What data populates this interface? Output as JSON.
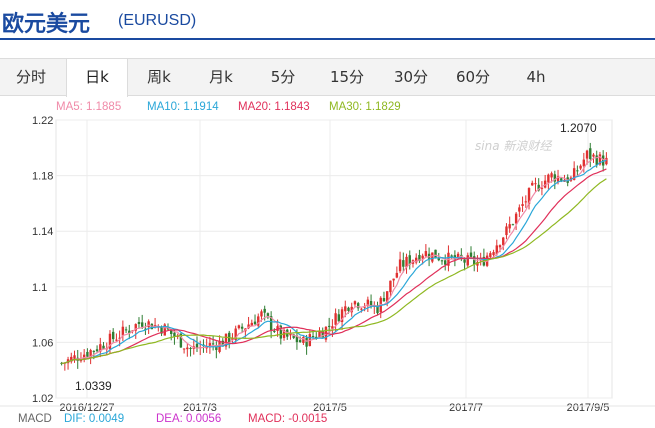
{
  "header": {
    "title": "欧元美元",
    "code": "(EURUSD)"
  },
  "tabs": [
    {
      "label": "分时",
      "active": false
    },
    {
      "label": "日k",
      "active": true
    },
    {
      "label": "周k",
      "active": false
    },
    {
      "label": "月k",
      "active": false
    },
    {
      "label": "5分",
      "active": false
    },
    {
      "label": "15分",
      "active": false
    },
    {
      "label": "30分",
      "active": false
    },
    {
      "label": "60分",
      "active": false
    },
    {
      "label": "4h",
      "active": false
    }
  ],
  "ma": {
    "ma5": "MA5: 1.1885",
    "ma10": "MA10: 1.1914",
    "ma20": "MA20: 1.1843",
    "ma30": "MA30: 1.1829",
    "colors": {
      "ma5": "#f08aa8",
      "ma10": "#2aa7d8",
      "ma20": "#e0305a",
      "ma30": "#8fb821"
    }
  },
  "macd": {
    "label": "MACD",
    "dif": "DIF: 0.0049",
    "dea": "DEA: 0.0056",
    "macd": "MACD: -0.0015",
    "colors": {
      "dif": "#2aa7d8",
      "dea": "#cc33cc",
      "macd": "#e0305a"
    }
  },
  "watermark": "新浪财经",
  "chart_data": {
    "type": "candlestick",
    "yticks": [
      "1.22",
      "1.18",
      "1.14",
      "1.1",
      "1.06",
      "1.02"
    ],
    "ylim": [
      1.02,
      1.22
    ],
    "xticks": [
      "2016/12/27",
      "2017/3",
      "2017/5",
      "2017/7",
      "2017/9/5"
    ],
    "annotations": {
      "high": "1.2070",
      "low": "1.0339"
    },
    "colors": {
      "up": "#e03030",
      "down": "#2e7d32"
    }
  }
}
